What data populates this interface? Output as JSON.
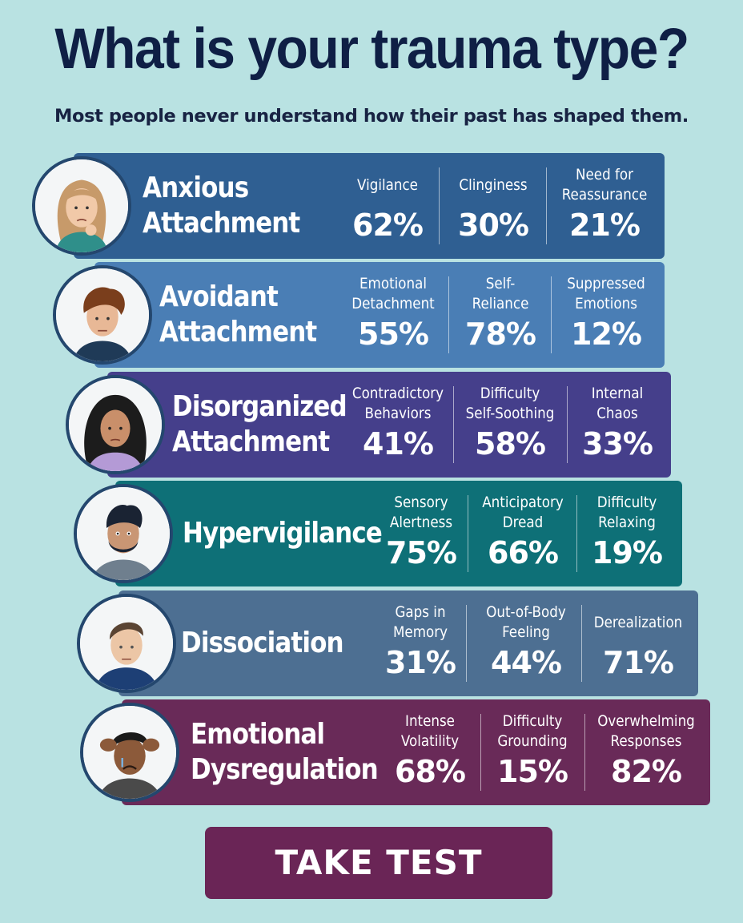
{
  "header": {
    "title": "What is your trauma type?",
    "subtitle": "Most people never understand how their past has shaped them."
  },
  "types": [
    {
      "name_lines": [
        "Anxious",
        "Attachment"
      ],
      "color": "#2f5f92",
      "stats": [
        {
          "label_lines": [
            "Vigilance"
          ],
          "value": "62%"
        },
        {
          "label_lines": [
            "Clinginess"
          ],
          "value": "30%"
        },
        {
          "label_lines": [
            "Need for",
            "Reassurance"
          ],
          "value": "21%"
        }
      ]
    },
    {
      "name_lines": [
        "Avoidant",
        "Attachment"
      ],
      "color": "#4a7eb5",
      "stats": [
        {
          "label_lines": [
            "Emotional",
            "Detachment"
          ],
          "value": "55%"
        },
        {
          "label_lines": [
            "Self-",
            "Reliance"
          ],
          "value": "78%"
        },
        {
          "label_lines": [
            "Suppressed",
            "Emotions"
          ],
          "value": "12%"
        }
      ]
    },
    {
      "name_lines": [
        "Disorganized",
        "Attachment"
      ],
      "color": "#453f8b",
      "stats": [
        {
          "label_lines": [
            "Contradictory",
            "Behaviors"
          ],
          "value": "41%"
        },
        {
          "label_lines": [
            "Difficulty",
            "Self-Soothing"
          ],
          "value": "58%"
        },
        {
          "label_lines": [
            "Internal",
            "Chaos"
          ],
          "value": "33%"
        }
      ]
    },
    {
      "name_lines": [
        "Hypervigilance"
      ],
      "color": "#0e7077",
      "stats": [
        {
          "label_lines": [
            "Sensory",
            "Alertness"
          ],
          "value": "75%"
        },
        {
          "label_lines": [
            "Anticipatory",
            "Dread"
          ],
          "value": "66%"
        },
        {
          "label_lines": [
            "Difficulty",
            "Relaxing"
          ],
          "value": "19%"
        }
      ]
    },
    {
      "name_lines": [
        "Dissociation"
      ],
      "color": "#4d6f92",
      "stats": [
        {
          "label_lines": [
            "Gaps in",
            "Memory"
          ],
          "value": "31%"
        },
        {
          "label_lines": [
            "Out-of-Body",
            "Feeling"
          ],
          "value": "44%"
        },
        {
          "label_lines": [
            "Derealization"
          ],
          "value": "71%"
        }
      ]
    },
    {
      "name_lines": [
        "Emotional",
        "Dysregulation"
      ],
      "color": "#692a58",
      "stats": [
        {
          "label_lines": [
            "Intense",
            "Volatility"
          ],
          "value": "68%"
        },
        {
          "label_lines": [
            "Difficulty",
            "Grounding"
          ],
          "value": "15%"
        },
        {
          "label_lines": [
            "Overwhelming",
            "Responses"
          ],
          "value": "82%"
        }
      ]
    }
  ],
  "cta": {
    "label": "TAKE TEST",
    "color": "#6a2556"
  }
}
